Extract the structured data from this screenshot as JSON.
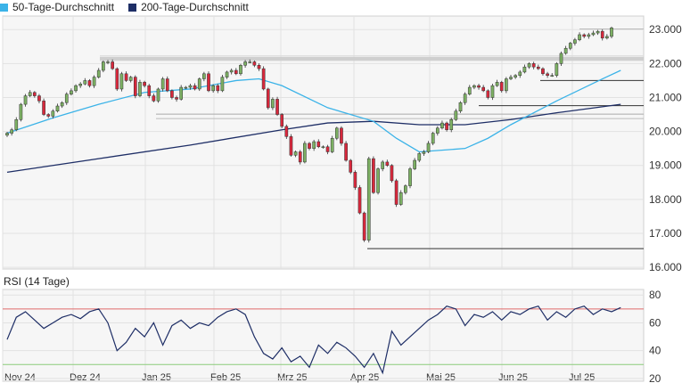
{
  "legend": {
    "ma50_label": "50-Tage-Durchschnitt",
    "ma200_label": "200-Tage-Durchschnitt"
  },
  "rsi_panel": {
    "title": "RSI (14 Tage)"
  },
  "colors": {
    "ma50": "#3bb3e8",
    "ma200": "#1e2e66",
    "up_candle": "#7cb063",
    "down_candle": "#d8283c",
    "rsi_line": "#1e2e66",
    "rsi_overbought": "#e06a6a",
    "rsi_oversold": "#8ccc7a",
    "resistance_band": "#cfcfcf",
    "support_line": "#333333"
  },
  "chart_data": [
    {
      "type": "candlestick",
      "title": "",
      "x_ticks": [
        "Nov 24",
        "Dez 24",
        "Jan 25",
        "Feb 25",
        "Mrz 25",
        "Apr 25",
        "Mai 25",
        "Jun 25",
        "Jul 25"
      ],
      "y_ticks": [
        16000,
        17000,
        18000,
        19000,
        20000,
        21000,
        22000,
        23000
      ],
      "y_tick_labels": [
        "16.000",
        "17.000",
        "18.000",
        "19.000",
        "20.000",
        "21.000",
        "22.000",
        "23.000"
      ],
      "ylim": [
        15950,
        23400
      ],
      "grid": true,
      "axis_side": "right",
      "close_series": [
        19950,
        20050,
        20350,
        20800,
        21050,
        21150,
        21050,
        20900,
        20500,
        20450,
        20600,
        20750,
        20850,
        21100,
        21200,
        21350,
        21400,
        21500,
        21350,
        21600,
        21800,
        22050,
        22050,
        21850,
        21250,
        21700,
        21500,
        21600,
        21050,
        21450,
        21350,
        21050,
        20900,
        21250,
        21550,
        21200,
        21000,
        20950,
        21300,
        21300,
        21350,
        21250,
        21550,
        21700,
        21200,
        21350,
        21200,
        21600,
        21750,
        21800,
        21700,
        21950,
        22050,
        22050,
        21950,
        21850,
        21250,
        20700,
        20950,
        20500,
        20150,
        19850,
        19300,
        19400,
        19100,
        19650,
        19500,
        19700,
        19550,
        19550,
        19400,
        19800,
        20100,
        19650,
        19150,
        18800,
        18350,
        17600,
        16800,
        19200,
        18200,
        18900,
        19100,
        19000,
        18550,
        17850,
        18200,
        18400,
        18900,
        19150,
        19350,
        19400,
        19650,
        19950,
        20100,
        20250,
        20050,
        20350,
        20600,
        20850,
        21100,
        21300,
        21350,
        21300,
        21200,
        21000,
        21350,
        21450,
        21200,
        21550,
        21600,
        21650,
        21750,
        21900,
        22000,
        21900,
        21850,
        21700,
        21650,
        21650,
        22000,
        22300,
        22450,
        22600,
        22700,
        22850,
        22800,
        22850,
        22900,
        22950,
        22750,
        22800,
        23050
      ]
    },
    {
      "type": "line",
      "name": "50-Tage-Durchschnitt",
      "x": [
        0,
        10,
        20,
        30,
        40,
        50,
        55,
        60,
        70,
        80,
        85,
        90,
        100,
        105,
        110,
        120,
        130,
        134
      ],
      "y": [
        19950,
        20400,
        20800,
        21150,
        21250,
        21500,
        21550,
        21350,
        20700,
        20300,
        19800,
        19400,
        19500,
        19800,
        20200,
        20900,
        21550,
        21800
      ]
    },
    {
      "type": "line",
      "name": "200-Tage-Durchschnitt",
      "x": [
        0,
        20,
        40,
        60,
        70,
        80,
        90,
        100,
        110,
        120,
        134
      ],
      "y": [
        18800,
        19200,
        19600,
        20050,
        20250,
        20300,
        20200,
        20200,
        20350,
        20550,
        20800
      ]
    },
    {
      "type": "line",
      "name": "RSI (14 Tage)",
      "y_ticks": [
        20,
        40,
        60,
        80
      ],
      "ylim": [
        18,
        84
      ],
      "overbought": 70,
      "oversold": 30,
      "x": [
        0,
        2,
        4,
        6,
        8,
        10,
        12,
        14,
        16,
        18,
        20,
        22,
        24,
        26,
        28,
        30,
        32,
        34,
        36,
        38,
        40,
        42,
        44,
        46,
        48,
        50,
        52,
        54,
        56,
        58,
        60,
        62,
        64,
        66,
        68,
        70,
        72,
        74,
        76,
        78,
        80,
        82,
        84,
        86,
        88,
        90,
        92,
        94,
        96,
        98,
        100,
        102,
        104,
        106,
        108,
        110,
        112,
        114,
        116,
        118,
        120,
        122,
        124,
        126,
        128,
        130,
        132,
        134
      ],
      "y": [
        48,
        64,
        68,
        62,
        56,
        60,
        64,
        66,
        63,
        68,
        70,
        60,
        40,
        46,
        56,
        50,
        60,
        44,
        58,
        62,
        56,
        60,
        58,
        64,
        68,
        70,
        66,
        50,
        38,
        34,
        42,
        32,
        36,
        28,
        44,
        38,
        46,
        42,
        36,
        28,
        38,
        24,
        54,
        44,
        50,
        56,
        62,
        66,
        72,
        70,
        58,
        66,
        64,
        68,
        62,
        68,
        66,
        70,
        72,
        62,
        68,
        64,
        70,
        72,
        66,
        70,
        68,
        71
      ]
    }
  ]
}
